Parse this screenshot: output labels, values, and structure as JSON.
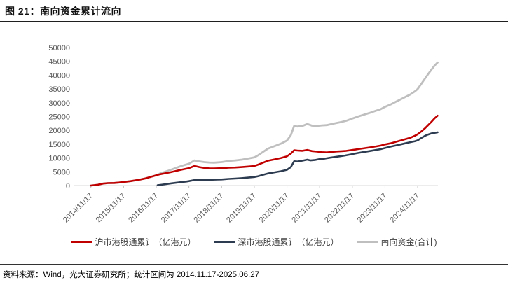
{
  "header": {
    "title": "图 21：南向资金累计流向"
  },
  "footer": {
    "source": "资料来源：Wind，光大证券研究所；统计区间为 2014.11.17-2025.06.27"
  },
  "legend": {
    "items": [
      {
        "id": "sh",
        "label": "沪市港股通累计（亿港元）",
        "color": "#C00000"
      },
      {
        "id": "sz",
        "label": "深市港股通累计（亿港元）",
        "color": "#2E3C51"
      },
      {
        "id": "total",
        "label": "南向资金(合计)",
        "color": "#BFBFBF"
      }
    ]
  },
  "chart_data": {
    "type": "line",
    "title": "南向资金累计流向",
    "xlabel": "",
    "ylabel": "",
    "ylim": [
      0,
      50000
    ],
    "xlim": [
      2014.35,
      2025.5
    ],
    "grid": false,
    "legend_position": "bottom",
    "y_ticks": [
      0,
      5000,
      10000,
      15000,
      20000,
      25000,
      30000,
      35000,
      40000,
      45000,
      50000
    ],
    "x_ticks": [
      {
        "x": 2014.88,
        "label": "2014/11/17"
      },
      {
        "x": 2015.88,
        "label": "2015/11/17"
      },
      {
        "x": 2016.88,
        "label": "2016/11/17"
      },
      {
        "x": 2017.88,
        "label": "2017/11/17"
      },
      {
        "x": 2018.88,
        "label": "2018/11/17"
      },
      {
        "x": 2019.88,
        "label": "2019/11/17"
      },
      {
        "x": 2020.88,
        "label": "2020/11/17"
      },
      {
        "x": 2021.88,
        "label": "2021/11/17"
      },
      {
        "x": 2022.88,
        "label": "2022/11/17"
      },
      {
        "x": 2023.88,
        "label": "2023/11/17"
      },
      {
        "x": 2024.88,
        "label": "2024/11/17"
      }
    ],
    "series": [
      {
        "id": "total",
        "name": "南向资金(合计)",
        "color": "#BFBFBF",
        "width": 2.8,
        "points": [
          [
            2014.88,
            0
          ],
          [
            2015.0,
            150
          ],
          [
            2015.1,
            300
          ],
          [
            2015.25,
            700
          ],
          [
            2015.4,
            900
          ],
          [
            2015.6,
            950
          ],
          [
            2015.75,
            1100
          ],
          [
            2015.88,
            1300
          ],
          [
            2016.1,
            1600
          ],
          [
            2016.25,
            1900
          ],
          [
            2016.4,
            2200
          ],
          [
            2016.55,
            2600
          ],
          [
            2016.7,
            3100
          ],
          [
            2016.88,
            3750
          ],
          [
            2017.0,
            4400
          ],
          [
            2017.15,
            5000
          ],
          [
            2017.3,
            5600
          ],
          [
            2017.45,
            6250
          ],
          [
            2017.6,
            6900
          ],
          [
            2017.75,
            7450
          ],
          [
            2017.88,
            7900
          ],
          [
            2018.05,
            9100
          ],
          [
            2018.2,
            8750
          ],
          [
            2018.35,
            8500
          ],
          [
            2018.5,
            8350
          ],
          [
            2018.65,
            8300
          ],
          [
            2018.88,
            8500
          ],
          [
            2019.1,
            8900
          ],
          [
            2019.3,
            9100
          ],
          [
            2019.5,
            9400
          ],
          [
            2019.7,
            9800
          ],
          [
            2019.88,
            10200
          ],
          [
            2020.0,
            11000
          ],
          [
            2020.15,
            12200
          ],
          [
            2020.3,
            13400
          ],
          [
            2020.5,
            14300
          ],
          [
            2020.7,
            15200
          ],
          [
            2020.88,
            16300
          ],
          [
            2021.0,
            18300
          ],
          [
            2021.1,
            21600
          ],
          [
            2021.2,
            21400
          ],
          [
            2021.35,
            21600
          ],
          [
            2021.5,
            22300
          ],
          [
            2021.65,
            21700
          ],
          [
            2021.8,
            21600
          ],
          [
            2021.95,
            21800
          ],
          [
            2022.1,
            21900
          ],
          [
            2022.25,
            22300
          ],
          [
            2022.4,
            22700
          ],
          [
            2022.55,
            23050
          ],
          [
            2022.7,
            23500
          ],
          [
            2022.88,
            24300
          ],
          [
            2023.05,
            25000
          ],
          [
            2023.2,
            25550
          ],
          [
            2023.4,
            26300
          ],
          [
            2023.6,
            27100
          ],
          [
            2023.75,
            27700
          ],
          [
            2023.88,
            28500
          ],
          [
            2024.05,
            29400
          ],
          [
            2024.2,
            30300
          ],
          [
            2024.35,
            31200
          ],
          [
            2024.5,
            32100
          ],
          [
            2024.65,
            33000
          ],
          [
            2024.8,
            34200
          ],
          [
            2024.88,
            35000
          ],
          [
            2025.0,
            37000
          ],
          [
            2025.1,
            38700
          ],
          [
            2025.2,
            40400
          ],
          [
            2025.3,
            42000
          ],
          [
            2025.4,
            43500
          ],
          [
            2025.49,
            44600
          ]
        ]
      },
      {
        "id": "sz",
        "name": "深市港股通累计（亿港元）",
        "color": "#2E3C51",
        "width": 2.6,
        "points": [
          [
            2016.92,
            100
          ],
          [
            2017.05,
            300
          ],
          [
            2017.2,
            550
          ],
          [
            2017.35,
            800
          ],
          [
            2017.5,
            1050
          ],
          [
            2017.65,
            1250
          ],
          [
            2017.8,
            1450
          ],
          [
            2017.88,
            1600
          ],
          [
            2018.05,
            2000
          ],
          [
            2018.2,
            2050
          ],
          [
            2018.4,
            2100
          ],
          [
            2018.6,
            2100
          ],
          [
            2018.75,
            2150
          ],
          [
            2018.88,
            2200
          ],
          [
            2019.1,
            2400
          ],
          [
            2019.3,
            2550
          ],
          [
            2019.5,
            2700
          ],
          [
            2019.7,
            2900
          ],
          [
            2019.88,
            3100
          ],
          [
            2020.0,
            3400
          ],
          [
            2020.15,
            3900
          ],
          [
            2020.3,
            4400
          ],
          [
            2020.5,
            4800
          ],
          [
            2020.7,
            5200
          ],
          [
            2020.88,
            5700
          ],
          [
            2021.0,
            6700
          ],
          [
            2021.1,
            8800
          ],
          [
            2021.2,
            8700
          ],
          [
            2021.35,
            9000
          ],
          [
            2021.5,
            9400
          ],
          [
            2021.6,
            9100
          ],
          [
            2021.75,
            9300
          ],
          [
            2021.88,
            9600
          ],
          [
            2022.05,
            9800
          ],
          [
            2022.2,
            10100
          ],
          [
            2022.35,
            10350
          ],
          [
            2022.5,
            10600
          ],
          [
            2022.65,
            10900
          ],
          [
            2022.88,
            11400
          ],
          [
            2023.05,
            11800
          ],
          [
            2023.2,
            12100
          ],
          [
            2023.4,
            12500
          ],
          [
            2023.6,
            12900
          ],
          [
            2023.75,
            13200
          ],
          [
            2023.88,
            13600
          ],
          [
            2024.05,
            14100
          ],
          [
            2024.2,
            14500
          ],
          [
            2024.35,
            14900
          ],
          [
            2024.5,
            15300
          ],
          [
            2024.65,
            15700
          ],
          [
            2024.8,
            16100
          ],
          [
            2024.88,
            16400
          ],
          [
            2025.0,
            17300
          ],
          [
            2025.1,
            18000
          ],
          [
            2025.2,
            18500
          ],
          [
            2025.3,
            18900
          ],
          [
            2025.4,
            19100
          ],
          [
            2025.49,
            19300
          ]
        ]
      },
      {
        "id": "sh",
        "name": "沪市港股通累计（亿港元）",
        "color": "#C00000",
        "width": 2.6,
        "points": [
          [
            2014.88,
            0
          ],
          [
            2015.0,
            150
          ],
          [
            2015.1,
            300
          ],
          [
            2015.25,
            700
          ],
          [
            2015.4,
            900
          ],
          [
            2015.6,
            950
          ],
          [
            2015.75,
            1100
          ],
          [
            2015.88,
            1300
          ],
          [
            2016.1,
            1600
          ],
          [
            2016.25,
            1900
          ],
          [
            2016.4,
            2200
          ],
          [
            2016.55,
            2600
          ],
          [
            2016.7,
            3100
          ],
          [
            2016.88,
            3700
          ],
          [
            2017.0,
            4100
          ],
          [
            2017.15,
            4450
          ],
          [
            2017.3,
            4800
          ],
          [
            2017.45,
            5200
          ],
          [
            2017.6,
            5600
          ],
          [
            2017.75,
            6000
          ],
          [
            2017.88,
            6300
          ],
          [
            2018.05,
            7100
          ],
          [
            2018.2,
            6700
          ],
          [
            2018.35,
            6400
          ],
          [
            2018.5,
            6250
          ],
          [
            2018.65,
            6200
          ],
          [
            2018.88,
            6300
          ],
          [
            2019.1,
            6500
          ],
          [
            2019.3,
            6550
          ],
          [
            2019.5,
            6700
          ],
          [
            2019.7,
            6900
          ],
          [
            2019.88,
            7100
          ],
          [
            2020.0,
            7600
          ],
          [
            2020.15,
            8300
          ],
          [
            2020.3,
            9000
          ],
          [
            2020.5,
            9500
          ],
          [
            2020.7,
            10000
          ],
          [
            2020.88,
            10600
          ],
          [
            2021.0,
            11600
          ],
          [
            2021.1,
            12800
          ],
          [
            2021.2,
            12700
          ],
          [
            2021.35,
            12600
          ],
          [
            2021.5,
            12900
          ],
          [
            2021.65,
            12500
          ],
          [
            2021.8,
            12300
          ],
          [
            2021.95,
            12100
          ],
          [
            2022.1,
            12000
          ],
          [
            2022.25,
            12200
          ],
          [
            2022.4,
            12350
          ],
          [
            2022.55,
            12450
          ],
          [
            2022.7,
            12600
          ],
          [
            2022.88,
            12900
          ],
          [
            2023.05,
            13200
          ],
          [
            2023.2,
            13450
          ],
          [
            2023.4,
            13800
          ],
          [
            2023.6,
            14200
          ],
          [
            2023.75,
            14500
          ],
          [
            2023.88,
            14900
          ],
          [
            2024.05,
            15300
          ],
          [
            2024.2,
            15800
          ],
          [
            2024.35,
            16300
          ],
          [
            2024.5,
            16800
          ],
          [
            2024.65,
            17300
          ],
          [
            2024.8,
            18100
          ],
          [
            2024.88,
            18600
          ],
          [
            2025.0,
            19700
          ],
          [
            2025.1,
            20700
          ],
          [
            2025.2,
            21900
          ],
          [
            2025.3,
            23100
          ],
          [
            2025.4,
            24400
          ],
          [
            2025.49,
            25300
          ]
        ]
      }
    ]
  }
}
